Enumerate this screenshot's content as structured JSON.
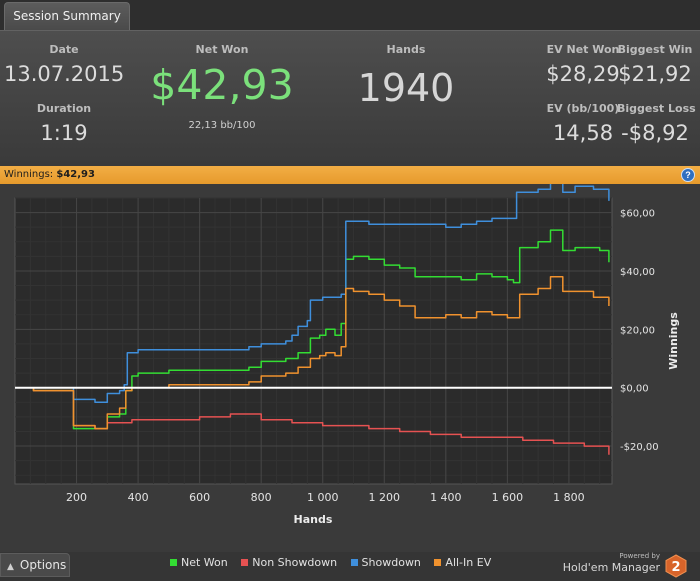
{
  "tab": {
    "label": "Session Summary"
  },
  "summary": {
    "date_label": "Date",
    "date_value": "13.07.2015",
    "duration_label": "Duration",
    "duration_value": "1:19",
    "netwon_label": "Net Won",
    "netwon_value": "$42,93",
    "netwon_sub": "22,13 bb/100",
    "hands_label": "Hands",
    "hands_value": "1940",
    "evnet_label": "EV Net Won",
    "evnet_value": "$28,29",
    "biggestwin_label": "Biggest Win",
    "biggestwin_value": "$21,92",
    "evbb_label": "EV (bb/100)",
    "evbb_value": "14,58",
    "biggestloss_label": "Biggest Loss",
    "biggestloss_value": "-$8,92"
  },
  "banner": {
    "label": "Winnings:",
    "value": "$42,93",
    "help": "?"
  },
  "bottom": {
    "options_label": "Options",
    "powered_by": "Powered by",
    "brand_name": "Hold'em Manager",
    "brand_version": "2"
  },
  "colors": {
    "net_won": "#33dd33",
    "non_showdown": "#e65252",
    "showdown": "#3f8fdc",
    "allin_ev": "#f0922e",
    "zero_line": "#ffffff",
    "netwon_text": "#7be07b"
  },
  "chart_data": {
    "type": "line",
    "xlabel": "Hands",
    "ylabel": "Winnings",
    "xlim": [
      0,
      1940
    ],
    "ylim": [
      -33,
      65
    ],
    "x_ticks": [
      200,
      400,
      600,
      800,
      1000,
      1200,
      1400,
      1600,
      1800
    ],
    "x_tick_labels": [
      "200",
      "400",
      "600",
      "800",
      "1 000",
      "1 200",
      "1 400",
      "1 600",
      "1 800"
    ],
    "y_ticks": [
      60,
      40,
      20,
      0,
      -20
    ],
    "y_tick_labels": [
      "$60,00",
      "$40,00",
      "$20,00",
      "$0,00",
      "-$20,00"
    ],
    "grid": true,
    "legend_position": "bottom",
    "series": [
      {
        "name": "Net Won",
        "color": "#33dd33",
        "points": [
          [
            0,
            0
          ],
          [
            60,
            -1
          ],
          [
            120,
            -1
          ],
          [
            190,
            -14
          ],
          [
            260,
            -14
          ],
          [
            300,
            -10
          ],
          [
            340,
            -9
          ],
          [
            360,
            -1
          ],
          [
            380,
            4
          ],
          [
            400,
            5
          ],
          [
            500,
            6
          ],
          [
            600,
            6
          ],
          [
            700,
            6
          ],
          [
            760,
            7
          ],
          [
            800,
            9
          ],
          [
            880,
            10
          ],
          [
            920,
            12
          ],
          [
            960,
            17
          ],
          [
            990,
            18
          ],
          [
            1010,
            20
          ],
          [
            1040,
            18
          ],
          [
            1060,
            22
          ],
          [
            1075,
            44
          ],
          [
            1100,
            45
          ],
          [
            1150,
            44
          ],
          [
            1200,
            42
          ],
          [
            1250,
            41
          ],
          [
            1300,
            38
          ],
          [
            1400,
            38
          ],
          [
            1450,
            37
          ],
          [
            1500,
            39
          ],
          [
            1550,
            38
          ],
          [
            1600,
            37
          ],
          [
            1620,
            36
          ],
          [
            1640,
            48
          ],
          [
            1700,
            50
          ],
          [
            1740,
            54
          ],
          [
            1780,
            47
          ],
          [
            1820,
            48
          ],
          [
            1880,
            48
          ],
          [
            1900,
            47
          ],
          [
            1930,
            43
          ]
        ]
      },
      {
        "name": "Non Showdown",
        "color": "#e65252",
        "points": [
          [
            0,
            0
          ],
          [
            60,
            -1
          ],
          [
            120,
            -1
          ],
          [
            190,
            -13
          ],
          [
            260,
            -14
          ],
          [
            300,
            -12
          ],
          [
            380,
            -11
          ],
          [
            500,
            -11
          ],
          [
            600,
            -10
          ],
          [
            700,
            -9
          ],
          [
            800,
            -11
          ],
          [
            900,
            -12
          ],
          [
            1000,
            -13
          ],
          [
            1050,
            -13
          ],
          [
            1150,
            -14
          ],
          [
            1250,
            -15
          ],
          [
            1350,
            -16
          ],
          [
            1450,
            -17
          ],
          [
            1550,
            -17
          ],
          [
            1650,
            -18
          ],
          [
            1750,
            -19
          ],
          [
            1850,
            -20
          ],
          [
            1930,
            -23
          ]
        ]
      },
      {
        "name": "Showdown",
        "color": "#3f8fdc",
        "points": [
          [
            0,
            0
          ],
          [
            60,
            0
          ],
          [
            120,
            0
          ],
          [
            190,
            -4
          ],
          [
            260,
            -5
          ],
          [
            300,
            -2
          ],
          [
            340,
            -1
          ],
          [
            355,
            1
          ],
          [
            365,
            12
          ],
          [
            400,
            13
          ],
          [
            500,
            13
          ],
          [
            600,
            13
          ],
          [
            700,
            13
          ],
          [
            760,
            14
          ],
          [
            800,
            15
          ],
          [
            880,
            16
          ],
          [
            900,
            18
          ],
          [
            920,
            21
          ],
          [
            950,
            23
          ],
          [
            960,
            30
          ],
          [
            1000,
            31
          ],
          [
            1060,
            32
          ],
          [
            1075,
            57
          ],
          [
            1150,
            56
          ],
          [
            1250,
            56
          ],
          [
            1350,
            56
          ],
          [
            1400,
            55
          ],
          [
            1450,
            56
          ],
          [
            1500,
            57
          ],
          [
            1550,
            58
          ],
          [
            1600,
            58
          ],
          [
            1620,
            58
          ],
          [
            1630,
            67
          ],
          [
            1700,
            68
          ],
          [
            1740,
            72
          ],
          [
            1780,
            67
          ],
          [
            1820,
            69
          ],
          [
            1880,
            68
          ],
          [
            1900,
            68
          ],
          [
            1930,
            64
          ]
        ]
      },
      {
        "name": "All-In EV",
        "color": "#f0922e",
        "points": [
          [
            0,
            0
          ],
          [
            60,
            -1
          ],
          [
            120,
            -1
          ],
          [
            190,
            -13
          ],
          [
            260,
            -14
          ],
          [
            300,
            -9
          ],
          [
            340,
            -7
          ],
          [
            360,
            -1
          ],
          [
            380,
            0
          ],
          [
            400,
            0
          ],
          [
            500,
            1
          ],
          [
            600,
            1
          ],
          [
            700,
            1
          ],
          [
            760,
            2
          ],
          [
            800,
            4
          ],
          [
            880,
            5
          ],
          [
            920,
            7
          ],
          [
            960,
            10
          ],
          [
            990,
            11
          ],
          [
            1010,
            12
          ],
          [
            1040,
            11
          ],
          [
            1060,
            14
          ],
          [
            1075,
            34
          ],
          [
            1100,
            33
          ],
          [
            1150,
            32
          ],
          [
            1200,
            30
          ],
          [
            1250,
            28
          ],
          [
            1300,
            24
          ],
          [
            1400,
            25
          ],
          [
            1450,
            24
          ],
          [
            1500,
            26
          ],
          [
            1550,
            25
          ],
          [
            1600,
            24
          ],
          [
            1620,
            24
          ],
          [
            1640,
            32
          ],
          [
            1700,
            34
          ],
          [
            1740,
            38
          ],
          [
            1780,
            33
          ],
          [
            1820,
            33
          ],
          [
            1880,
            31
          ],
          [
            1900,
            31
          ],
          [
            1930,
            28
          ]
        ]
      }
    ]
  }
}
